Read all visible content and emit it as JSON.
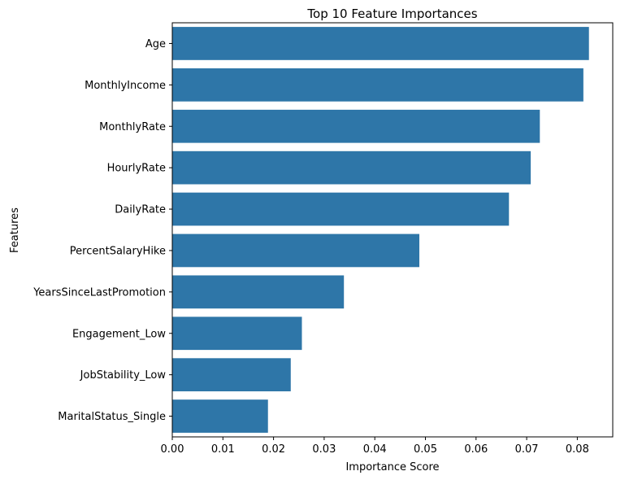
{
  "chart_data": {
    "type": "bar",
    "orientation": "horizontal",
    "title": "Top 10 Feature Importances",
    "xlabel": "Importance Score",
    "ylabel": "Features",
    "xlim": [
      0,
      0.087
    ],
    "xticks": [
      "0.00",
      "0.01",
      "0.02",
      "0.03",
      "0.04",
      "0.05",
      "0.06",
      "0.07",
      "0.08"
    ],
    "bar_color": "#2e76a8",
    "grid": false,
    "categories": [
      "Age",
      "MonthlyIncome",
      "MonthlyRate",
      "HourlyRate",
      "DailyRate",
      "PercentSalaryHike",
      "YearsSinceLastPromotion",
      "Engagement_Low",
      "JobStability_Low",
      "MaritalStatus_Single"
    ],
    "values": [
      0.0823,
      0.0812,
      0.0726,
      0.0708,
      0.0665,
      0.0488,
      0.0339,
      0.0256,
      0.0234,
      0.0189
    ]
  }
}
